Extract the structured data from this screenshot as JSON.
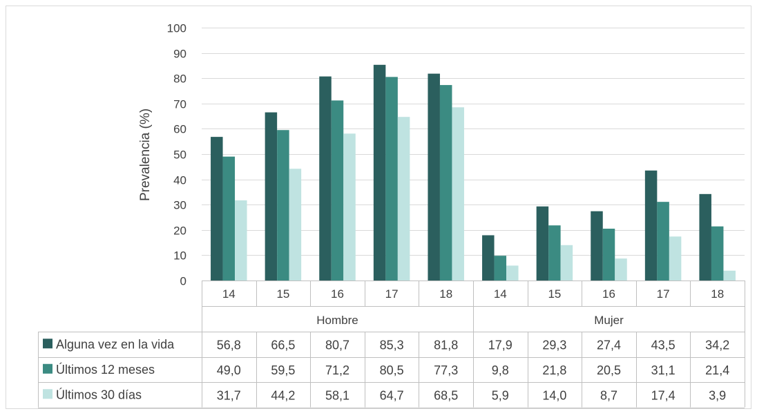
{
  "chart_data": {
    "type": "bar",
    "ylabel": "Prevalencia (%)",
    "ylim": [
      0,
      100
    ],
    "yticks": [
      "0",
      "10",
      "20",
      "30",
      "40",
      "50",
      "60",
      "70",
      "80",
      "90",
      "100"
    ],
    "grid": true,
    "groups": [
      {
        "label": "Hombre",
        "categories": [
          "14",
          "15",
          "16",
          "17",
          "18"
        ]
      },
      {
        "label": "Mujer",
        "categories": [
          "14",
          "15",
          "16",
          "17",
          "18"
        ]
      }
    ],
    "series": [
      {
        "name": "Alguna vez en la vida",
        "color": "#2b5f5e",
        "values": [
          56.8,
          66.5,
          80.7,
          85.3,
          81.8,
          17.9,
          29.3,
          27.4,
          43.5,
          34.2
        ],
        "labels": [
          "56,8",
          "66,5",
          "80,7",
          "85,3",
          "81,8",
          "17,9",
          "29,3",
          "27,4",
          "43,5",
          "34,2"
        ]
      },
      {
        "name": "Últimos 12 meses",
        "color": "#3b8b82",
        "values": [
          49.0,
          59.5,
          71.2,
          80.5,
          77.3,
          9.8,
          21.8,
          20.5,
          31.1,
          21.4
        ],
        "labels": [
          "49,0",
          "59,5",
          "71,2",
          "80,5",
          "77,3",
          "9,8",
          "21,8",
          "20,5",
          "31,1",
          "21,4"
        ]
      },
      {
        "name": "Últimos 30 días",
        "color": "#bfe3e1",
        "values": [
          31.7,
          44.2,
          58.1,
          64.7,
          68.5,
          5.9,
          14.0,
          8.7,
          17.4,
          3.9
        ],
        "labels": [
          "31,7",
          "44,2",
          "58,1",
          "64,7",
          "68,5",
          "5,9",
          "14,0",
          "8,7",
          "17,4",
          "3,9"
        ]
      }
    ]
  }
}
